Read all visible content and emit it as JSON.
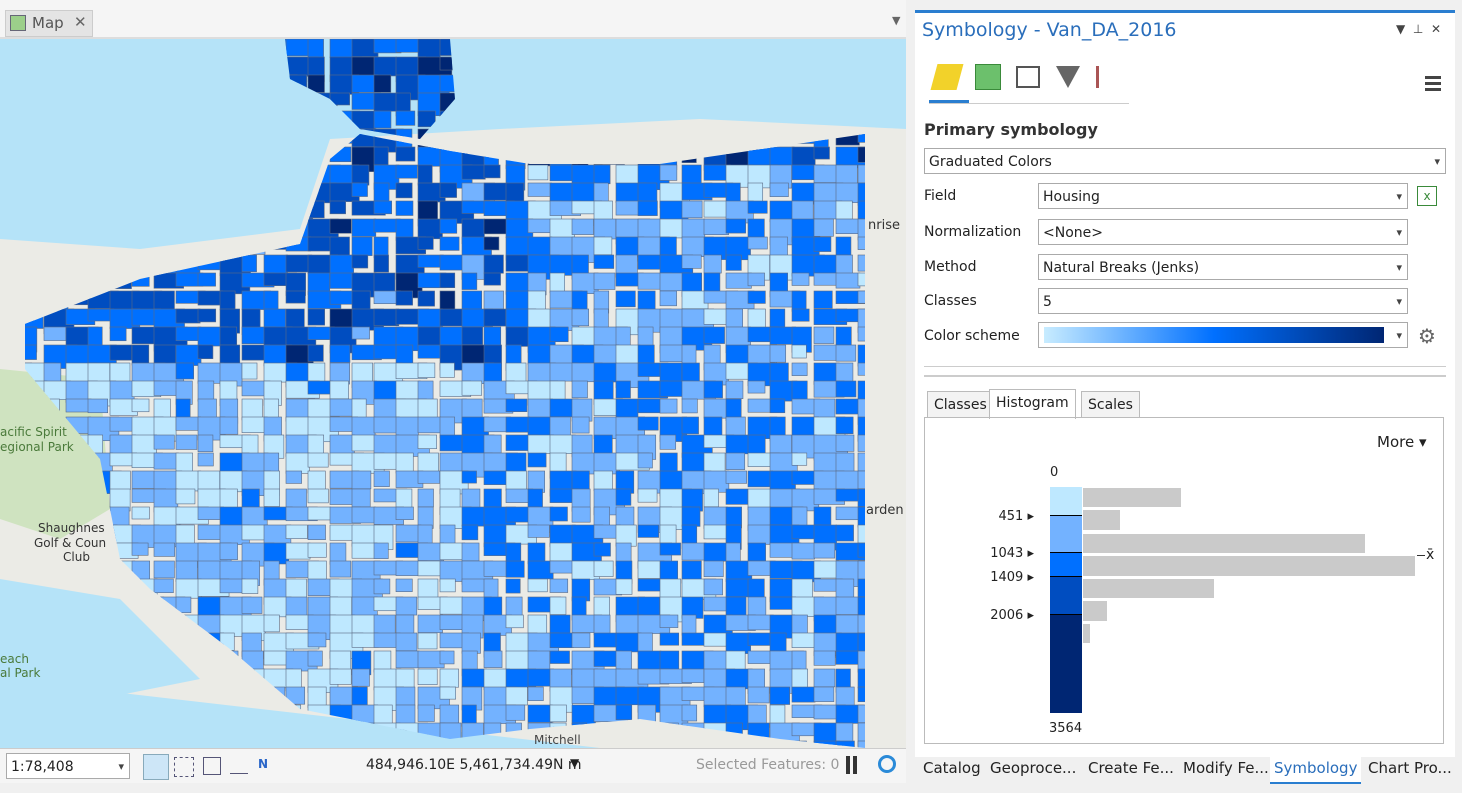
{
  "map_view": {
    "tab": "Map",
    "labels": [
      "acific Spirit",
      "egional Park",
      "Shaughnes",
      "Golf & Coun",
      "Club",
      "Mitchell",
      "arden",
      "nrise",
      "each",
      "al Park"
    ],
    "scale": "1:78,408",
    "coordinates": "484,946.10E 5,461,734.49N m",
    "selected_features": "Selected Features: 0"
  },
  "symbology_pane": {
    "title": "Symbology - Van_DA_2016",
    "section": "Primary symbology",
    "renderer": "Graduated Colors",
    "fields": [
      {
        "label": "Field",
        "value": "Housing"
      },
      {
        "label": "Normalization",
        "value": "<None>"
      },
      {
        "label": "Method",
        "value": "Natural Breaks (Jenks)"
      },
      {
        "label": "Classes",
        "value": "5"
      },
      {
        "label": "Color scheme"
      }
    ],
    "tabs": [
      "Classes",
      "Histogram",
      "Scales"
    ],
    "more": "More",
    "histogram": {
      "top": 0,
      "breaks": [
        451,
        1043,
        1409,
        2006
      ],
      "bottom": 3564,
      "mean_symbol": "x̄"
    }
  },
  "bottom_tabs": [
    "Catalog",
    "Geoproce...",
    "Create Fe...",
    "Modify Fe...",
    "Symbology",
    "Chart Pro..."
  ]
}
